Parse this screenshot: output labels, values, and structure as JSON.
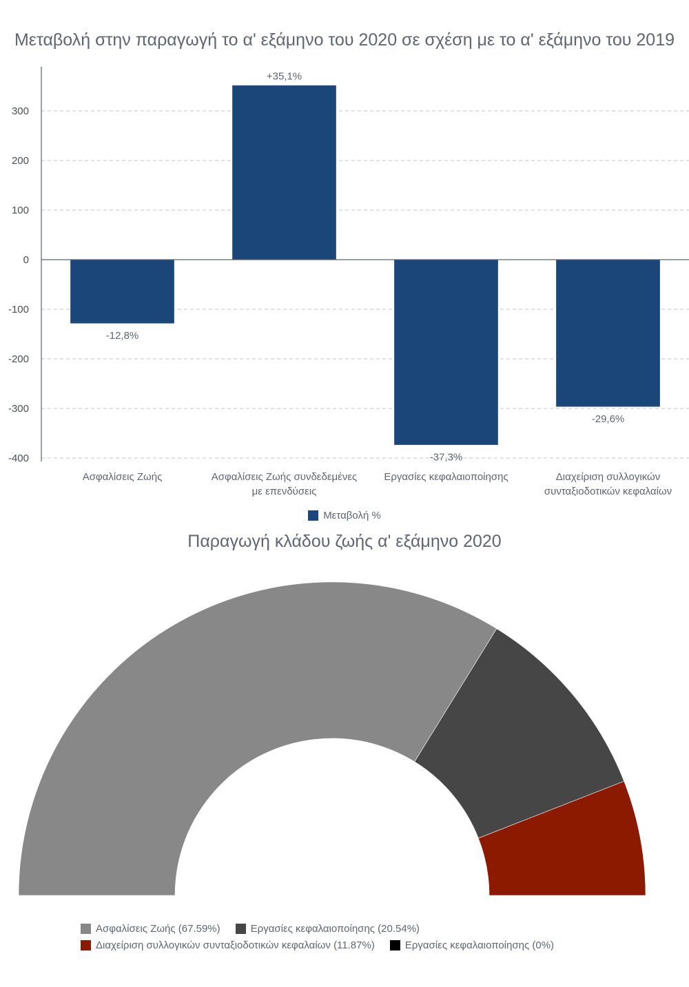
{
  "chart_data": [
    {
      "type": "bar",
      "title": "Μεταβολή στην παραγωγή το α' εξάμηνο του 2020 σε σχέση με το α' εξάμηνο του 2019",
      "categories": [
        "Ασφαλίσεις Ζωής",
        "Ασφαλίσεις Ζωής συνδεδεμένες με επενδύσεις",
        "Εργασίες κεφαλαιοποίησης",
        "Διαχείριση συλλογικών συνταξιοδοτικών κεφαλαίων"
      ],
      "category_lines": [
        [
          "Ασφαλίσεις Ζωής"
        ],
        [
          "Ασφαλίσεις Ζωής συνδεδεμένες",
          "με επενδύσεις"
        ],
        [
          "Εργασίες κεφαλαιοποίησης"
        ],
        [
          "Διαχείριση συλλογικών",
          "συνταξιοδοτικών κεφαλαίων"
        ]
      ],
      "series": [
        {
          "name": "Μεταβολή %",
          "color": "#1b4679",
          "values": [
            -128,
            351,
            -373,
            -296
          ]
        }
      ],
      "data_labels": [
        "-12,8%",
        "+35,1%",
        "-37,3%",
        "-29,6%"
      ],
      "yticks": [
        300,
        200,
        100,
        0,
        -100,
        -200,
        -300,
        -400
      ],
      "ylim": [
        -400,
        390
      ],
      "xlabel": "",
      "ylabel": "",
      "grid": true,
      "legend_position": "bottom"
    },
    {
      "type": "pie",
      "subtype": "semi-donut",
      "title": "Παραγωγή κλάδου ζωής α' εξάμηνο 2020",
      "slices": [
        {
          "label": "Ασφαλίσεις Ζωής",
          "value": 67.59,
          "legend": "Ασφαλίσεις Ζωής (67.59%)",
          "color": "#888888"
        },
        {
          "label": "Εργασίες κεφαλαιοποίησης",
          "value": 20.54,
          "legend": "Εργασίες κεφαλαιοποίησης (20.54%)",
          "color": "#464646"
        },
        {
          "label": "Διαχείριση συλλογικών συνταξιοδοτικών κεφαλαίων",
          "value": 11.87,
          "legend": "Διαχείριση συλλογικών συνταξιοδοτικών κεφαλαίων (11.87%)",
          "color": "#8b1a00"
        },
        {
          "label": "Εργασίες κεφαλαιοποίησης",
          "value": 0,
          "legend": "Εργασίες κεφαλαιοποίησης (0%)",
          "color": "#000000"
        }
      ],
      "legend_position": "bottom"
    }
  ]
}
